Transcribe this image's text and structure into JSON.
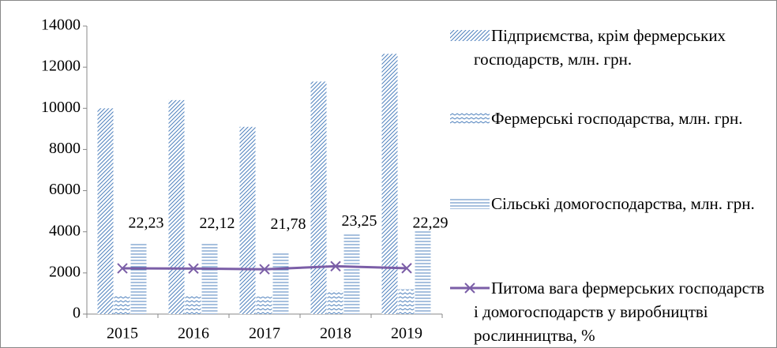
{
  "chart_data": {
    "type": "bar",
    "categories": [
      "2015",
      "2016",
      "2017",
      "2018",
      "2019"
    ],
    "series": [
      {
        "name": "Підприємства, крім фермерських господарств, млн. грн.",
        "color": "#4f81bd",
        "pattern": "diagonal",
        "values": [
          10000,
          10400,
          9100,
          11300,
          12650
        ]
      },
      {
        "name": "Фермерські господарства, млн. грн.",
        "color": "#4f81bd",
        "pattern": "zigzag",
        "values": [
          900,
          950,
          850,
          1150,
          1200
        ]
      },
      {
        "name": "Сільські домогосподарства, млн. грн.",
        "color": "#4f81bd",
        "pattern": "horizontal",
        "values": [
          3500,
          3450,
          3050,
          3900,
          4050
        ]
      },
      {
        "name": "Питома вага фермерських господарств і домогосподарств у виробництві рослинництва, %",
        "color": "#7b5ea7",
        "type": "line",
        "axis": "y2",
        "values": [
          22.23,
          22.12,
          21.78,
          23.25,
          22.29
        ],
        "value_labels": [
          "22,23",
          "22,12",
          "21,78",
          "23,25",
          "22,29"
        ]
      }
    ],
    "ylim": [
      0,
      14000
    ],
    "yticks": [
      0,
      2000,
      4000,
      6000,
      8000,
      10000,
      12000,
      14000
    ],
    "y2lim": [
      0,
      140
    ],
    "grid": false,
    "legend": "right"
  }
}
